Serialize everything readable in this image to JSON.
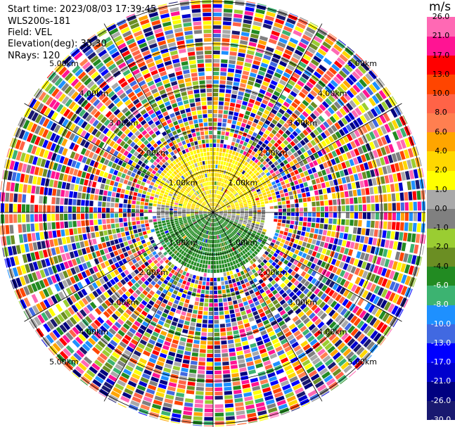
{
  "header": {
    "start_time": "Start time: 2023/08/03 17:39:45",
    "site": "WLS200s-181",
    "field": "Field: VEL",
    "elevation": "Elevation(deg): 35.30",
    "nrays": "NRays: 120"
  },
  "colorbar": {
    "unit": "m/s",
    "colors": [
      "#191970",
      "#000080",
      "#0000cd",
      "#0000ff",
      "#4169e1",
      "#1e90ff",
      "#3cb371",
      "#228b22",
      "#6b8e23",
      "#9acd32",
      "#808080",
      "#a9a9a9",
      "#ffff00",
      "#ffd700",
      "#ffa500",
      "#ff7f50",
      "#ff6347",
      "#ff4500",
      "#ff0000",
      "#ff1493",
      "#ff69b4"
    ],
    "ticks": [
      "-30.0",
      "-26.0",
      "-21.0",
      "-17.0",
      "-13.0",
      "-10.0",
      "-8.0",
      "-6.0",
      "-4.0",
      "-2.0",
      "-1.0",
      "0.0",
      "1.0",
      "2.0",
      "4.0",
      "6.0",
      "8.0",
      "10.0",
      "13.0",
      "17.0",
      "21.0",
      "26.0"
    ]
  },
  "chart_data": {
    "type": "heatmap",
    "subtype": "ppi-polar",
    "field": "VEL",
    "units": "m/s",
    "rays": 120,
    "range_labels": [
      "1.00km",
      "2.00km",
      "3.00km",
      "4.00km",
      "5.00km"
    ],
    "crosshair": true,
    "sectors": [
      {
        "azimuth_deg": [
          280,
          80
        ],
        "range_km": [
          0,
          1.6
        ],
        "velocity_ms": 2.0,
        "description": "yellow/orange"
      },
      {
        "azimuth_deg": [
          80,
          115
        ],
        "range_km": [
          0,
          1.3
        ],
        "velocity_ms": 0.0,
        "description": "gray"
      },
      {
        "azimuth_deg": [
          115,
          260
        ],
        "range_km": [
          0,
          1.5
        ],
        "velocity_ms": -5.0,
        "description": "green"
      },
      {
        "azimuth_deg": [
          260,
          280
        ],
        "range_km": [
          0,
          1.4
        ],
        "velocity_ms": 0.0,
        "description": "gray"
      }
    ],
    "noise_beyond_km": 1.6,
    "max_range_km": 5.0
  }
}
